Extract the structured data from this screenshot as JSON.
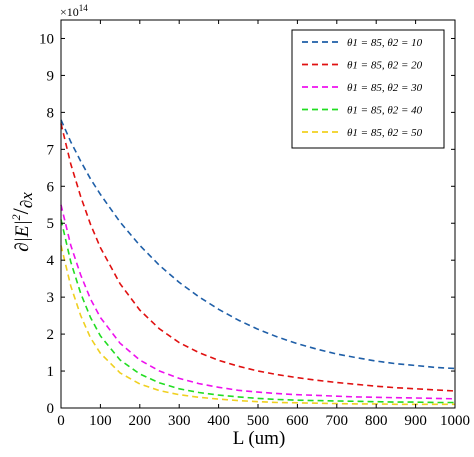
{
  "chart_data": {
    "type": "line",
    "xlabel": "L (um)",
    "ylabel_parts": {
      "partial": "∂",
      "E": "|E|",
      "sup": "2",
      "slash": "/",
      "dx": "∂x"
    },
    "y_multiplier": "×10",
    "y_exponent": "14",
    "xlim": [
      0,
      1000
    ],
    "ylim": [
      0,
      10.5
    ],
    "xticks": [
      "0",
      "100",
      "200",
      "300",
      "400",
      "500",
      "600",
      "700",
      "800",
      "900",
      "1000"
    ],
    "yticks": [
      "0",
      "1",
      "2",
      "3",
      "4",
      "5",
      "6",
      "7",
      "8",
      "9",
      "10"
    ],
    "grid": false,
    "legend_position": "top-right",
    "line_style": "dashed",
    "x": [
      0,
      25,
      50,
      75,
      100,
      150,
      200,
      250,
      300,
      350,
      400,
      450,
      500,
      550,
      600,
      650,
      700,
      750,
      800,
      850,
      900,
      950,
      1000
    ],
    "series": [
      {
        "name": "θ1 = 85, θ2 = 10",
        "color": "#1f5fa8",
        "values": [
          7.8,
          7.2,
          6.68,
          6.2,
          5.78,
          5.03,
          4.4,
          3.86,
          3.4,
          3.01,
          2.67,
          2.38,
          2.13,
          1.92,
          1.74,
          1.59,
          1.46,
          1.36,
          1.27,
          1.2,
          1.15,
          1.1,
          1.07
        ]
      },
      {
        "name": "θ1 = 85, θ2 = 20",
        "color": "#e01010",
        "values": [
          7.7,
          6.6,
          5.72,
          4.97,
          4.34,
          3.36,
          2.65,
          2.14,
          1.77,
          1.5,
          1.29,
          1.13,
          1.0,
          0.9,
          0.82,
          0.75,
          0.69,
          0.64,
          0.59,
          0.55,
          0.52,
          0.49,
          0.46
        ]
      },
      {
        "name": "θ1 = 85, θ2 = 30",
        "color": "#ee10ee",
        "values": [
          5.5,
          4.4,
          3.6,
          2.95,
          2.45,
          1.75,
          1.3,
          1.0,
          0.8,
          0.66,
          0.56,
          0.48,
          0.43,
          0.39,
          0.36,
          0.34,
          0.32,
          0.3,
          0.29,
          0.28,
          0.27,
          0.26,
          0.25
        ]
      },
      {
        "name": "θ1 = 85, θ2 = 40",
        "color": "#22dd22",
        "values": [
          5.1,
          3.95,
          3.1,
          2.45,
          1.95,
          1.3,
          0.92,
          0.68,
          0.52,
          0.42,
          0.35,
          0.3,
          0.26,
          0.23,
          0.21,
          0.2,
          0.19,
          0.18,
          0.17,
          0.16,
          0.16,
          0.15,
          0.15
        ]
      },
      {
        "name": "θ1 = 85, θ2 = 50",
        "color": "#f0d020",
        "values": [
          4.4,
          3.3,
          2.5,
          1.9,
          1.48,
          0.95,
          0.65,
          0.47,
          0.36,
          0.29,
          0.24,
          0.2,
          0.17,
          0.15,
          0.14,
          0.13,
          0.12,
          0.11,
          0.11,
          0.1,
          0.1,
          0.1,
          0.1
        ]
      }
    ]
  }
}
